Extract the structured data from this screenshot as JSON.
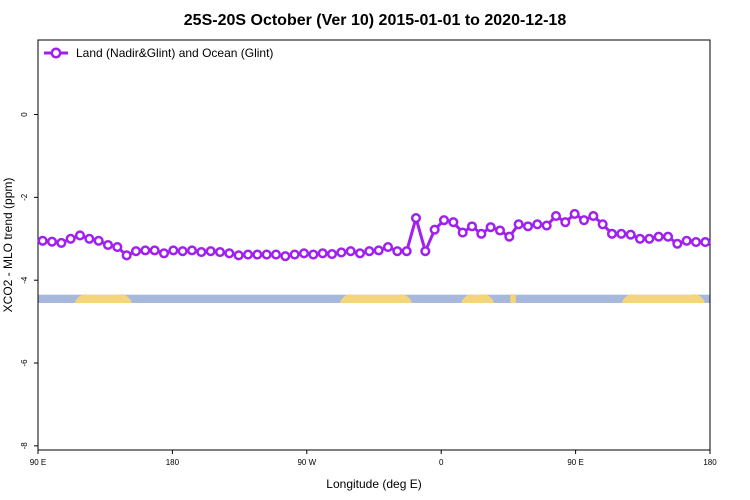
{
  "chart_data": {
    "type": "line",
    "title": "25S-20S October (Ver 10)   2015-01-01 to 2020-12-18",
    "xlabel": "Longitude (deg E)",
    "ylabel": "XCO2 - MLO trend (ppm)",
    "xlim": [
      90,
      450
    ],
    "ylim": [
      -8.1,
      1.8
    ],
    "x_ticks": [
      {
        "value": 90,
        "label": "90 E"
      },
      {
        "value": 162,
        "label": "180"
      },
      {
        "value": 234,
        "label": "90 W"
      },
      {
        "value": 306,
        "label": "0"
      },
      {
        "value": 378,
        "label": "90 E"
      },
      {
        "value": 450,
        "label": "180"
      }
    ],
    "y_ticks": [
      {
        "value": 0,
        "label": "0"
      },
      {
        "value": -2,
        "label": "-2"
      },
      {
        "value": -4,
        "label": "-4"
      },
      {
        "value": -6,
        "label": "-6"
      },
      {
        "value": -8,
        "label": "-8"
      }
    ],
    "legend": {
      "position": "top-left"
    },
    "series": [
      {
        "name": "Land (Nadir&Glint) and Ocean (Glint)",
        "color": "#a020f0",
        "x": [
          92.5,
          97.5,
          102.5,
          107.5,
          112.5,
          117.5,
          122.5,
          127.5,
          132.5,
          137.5,
          142.5,
          147.5,
          152.5,
          157.5,
          162.5,
          167.5,
          172.5,
          177.5,
          182.5,
          187.5,
          192.5,
          197.5,
          202.5,
          207.5,
          212.5,
          217.5,
          222.5,
          227.5,
          232.5,
          237.5,
          242.5,
          247.5,
          252.5,
          257.5,
          262.5,
          267.5,
          272.5,
          277.5,
          282.5,
          287.5,
          292.5,
          297.5,
          302.5,
          307.5,
          312.5,
          317.5,
          322.5,
          327.5,
          332.5,
          337.5,
          342.5,
          347.5,
          352.5,
          357.5,
          362.5,
          367.5,
          372.5,
          377.5,
          382.5,
          387.5,
          392.5,
          397.5,
          402.5,
          407.5,
          412.5,
          417.5,
          422.5,
          427.5,
          432.5,
          437.5,
          442.5,
          447.5
        ],
        "y": [
          -3.05,
          -3.07,
          -3.1,
          -3.0,
          -2.92,
          -3.0,
          -3.05,
          -3.15,
          -3.2,
          -3.4,
          -3.3,
          -3.28,
          -3.28,
          -3.35,
          -3.28,
          -3.3,
          -3.28,
          -3.32,
          -3.3,
          -3.32,
          -3.35,
          -3.4,
          -3.38,
          -3.38,
          -3.38,
          -3.38,
          -3.42,
          -3.38,
          -3.35,
          -3.38,
          -3.35,
          -3.37,
          -3.33,
          -3.3,
          -3.35,
          -3.3,
          -3.28,
          -3.2,
          -3.3,
          -3.3,
          -2.5,
          -3.3,
          -2.78,
          -2.55,
          -2.6,
          -2.85,
          -2.7,
          -2.88,
          -2.72,
          -2.8,
          -2.95,
          -2.65,
          -2.7,
          -2.65,
          -2.68,
          -2.45,
          -2.6,
          -2.4,
          -2.55,
          -2.45,
          -2.65,
          -2.88,
          -2.88,
          -2.9,
          -3.0,
          -3.0,
          -2.95,
          -2.95,
          -3.12,
          -3.05,
          -3.08,
          -3.08
        ]
      }
    ],
    "surface_band": {
      "y_range": [
        -4.55,
        -4.35
      ],
      "ocean_color": "#a6b8dc",
      "land_color": "#f5d57a",
      "land_x_ranges": [
        [
          110,
          140
        ],
        [
          252,
          290
        ],
        [
          317,
          334
        ],
        [
          343,
          346
        ],
        [
          403,
          447
        ]
      ]
    }
  }
}
